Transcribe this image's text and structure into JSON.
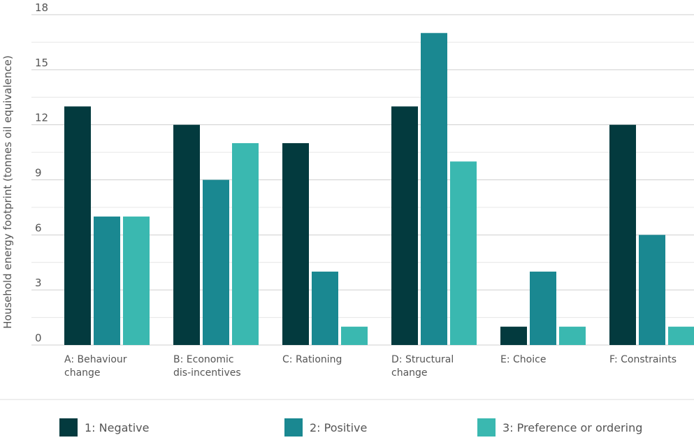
{
  "chart_data": {
    "type": "bar",
    "ylabel": "Household energy footprint (tonnes oil equivalence)",
    "xlabel": "",
    "ylim": [
      0,
      18
    ],
    "yticks": [
      0,
      3,
      6,
      9,
      12,
      15,
      18
    ],
    "grid": true,
    "legend_position": "bottom",
    "categories": [
      [
        "A: Behaviour",
        "change"
      ],
      [
        "B: Economic",
        "dis-incentives"
      ],
      [
        "C: Rationing"
      ],
      [
        "D: Structural",
        "change"
      ],
      [
        "E: Choice"
      ],
      [
        "F: Constraints"
      ]
    ],
    "series": [
      {
        "name": "1: Negative",
        "color": "#033a3e",
        "values": [
          13,
          12,
          11,
          13,
          1,
          12
        ]
      },
      {
        "name": "2: Positive",
        "color": "#1a8891",
        "values": [
          7,
          9,
          4,
          17,
          4,
          6
        ]
      },
      {
        "name": "3: Preference or ordering",
        "color": "#3ab8b0",
        "values": [
          7,
          11,
          1,
          10,
          1,
          1
        ]
      }
    ]
  }
}
